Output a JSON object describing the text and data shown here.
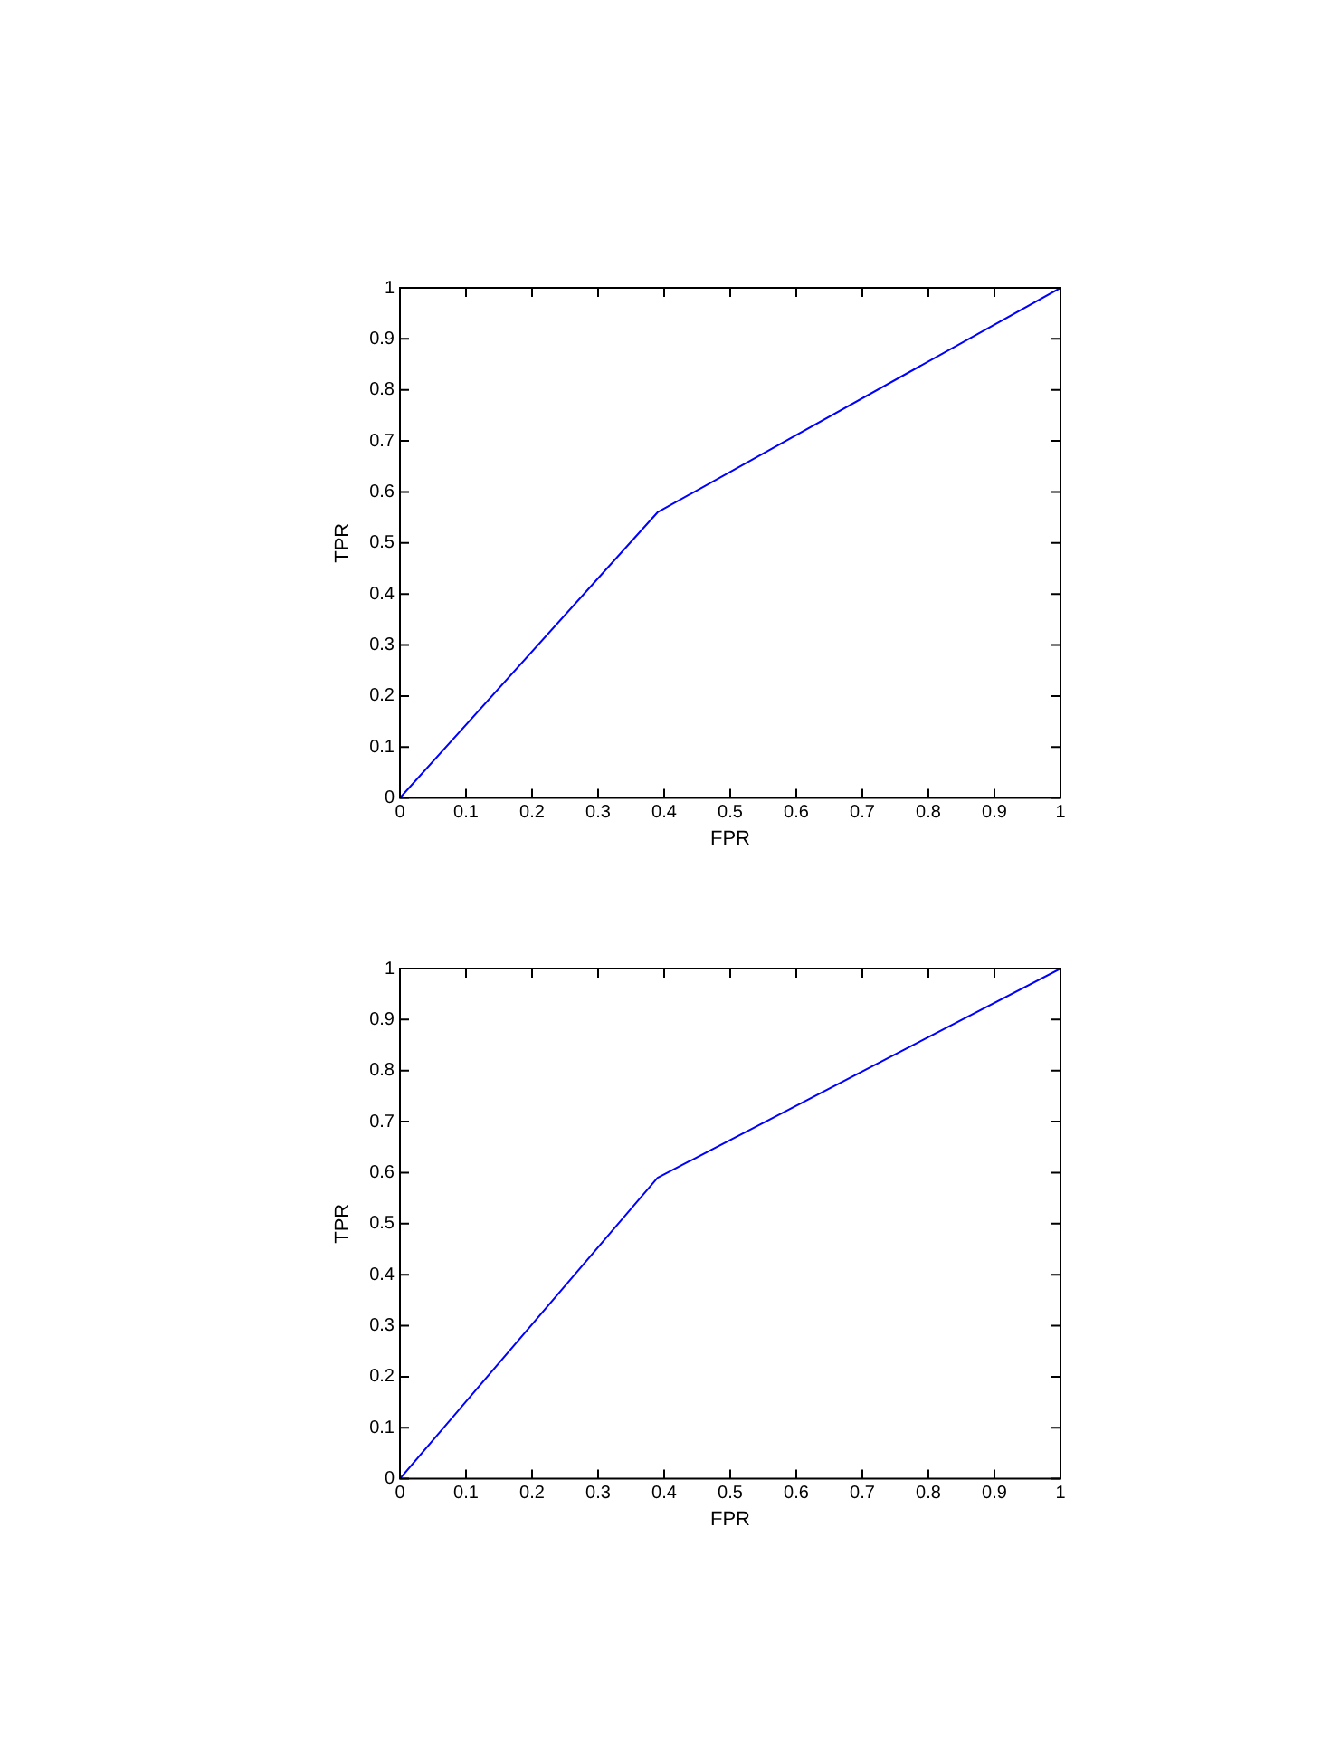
{
  "chart_data": [
    {
      "type": "line",
      "xlabel": "FPR",
      "ylabel": "TPR",
      "x": [
        0,
        0.39,
        1
      ],
      "series": [
        {
          "color": "#0000ff",
          "values": [
            0,
            0.56,
            1
          ]
        }
      ],
      "xlim": [
        0,
        1
      ],
      "ylim": [
        0,
        1
      ],
      "xticks": [
        0,
        0.1,
        0.2,
        0.3,
        0.4,
        0.5,
        0.6,
        0.7,
        0.8,
        0.9,
        1
      ],
      "yticks": [
        0,
        0.1,
        0.2,
        0.3,
        0.4,
        0.5,
        0.6,
        0.7,
        0.8,
        0.9,
        1
      ],
      "grid": false,
      "legend": false,
      "marker": "none",
      "line_style": "solid"
    },
    {
      "type": "line",
      "xlabel": "FPR",
      "ylabel": "TPR",
      "x": [
        0,
        0.39,
        1
      ],
      "series": [
        {
          "color": "#0000ff",
          "values": [
            0,
            0.59,
            1
          ]
        }
      ],
      "xlim": [
        0,
        1
      ],
      "ylim": [
        0,
        1
      ],
      "xticks": [
        0,
        0.1,
        0.2,
        0.3,
        0.4,
        0.5,
        0.6,
        0.7,
        0.8,
        0.9,
        1
      ],
      "yticks": [
        0,
        0.1,
        0.2,
        0.3,
        0.4,
        0.5,
        0.6,
        0.7,
        0.8,
        0.9,
        1
      ],
      "grid": false,
      "legend": false,
      "marker": "none",
      "line_style": "solid"
    }
  ]
}
